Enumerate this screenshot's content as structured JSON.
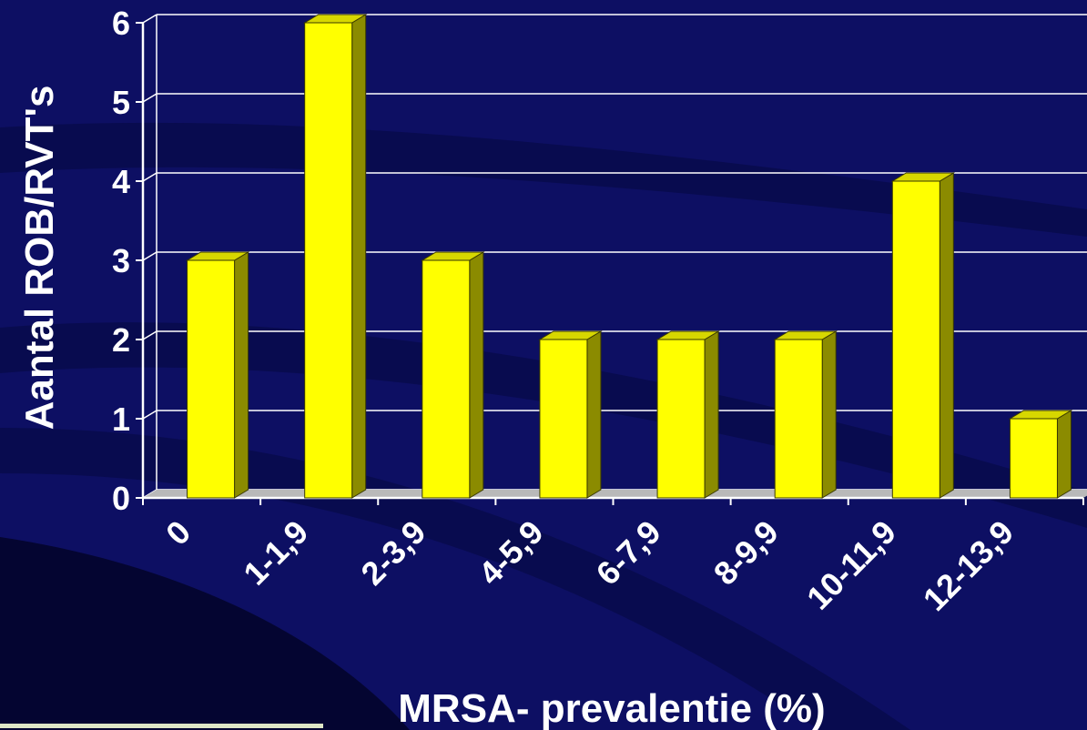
{
  "colors": {
    "background": "#0d0f63",
    "bar_front": "#ffff00",
    "bar_side": "#8b8b00",
    "bar_top": "#d7d700",
    "grid": "#ffffff",
    "text": "#ffffff"
  },
  "chart_data": {
    "type": "bar",
    "categories": [
      "0",
      "1-1,9",
      "2-3,9",
      "4-5,9",
      "6-7,9",
      "8-9,9",
      "10-11,9",
      "12-13,9"
    ],
    "values": [
      3,
      6,
      3,
      2,
      2,
      2,
      4,
      1
    ],
    "xlabel": "MRSA- prevalentie (%)",
    "ylabel": "Aantal ROB/RVT's",
    "ylim": [
      0,
      6
    ],
    "yticks": [
      "0",
      "1",
      "2",
      "3",
      "4",
      "5",
      "6"
    ],
    "grid": true,
    "style": "3d-column"
  }
}
